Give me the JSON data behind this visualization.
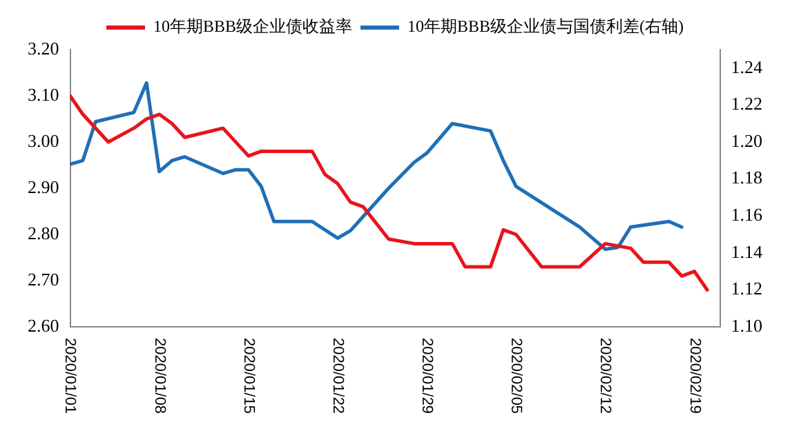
{
  "chart_data": {
    "type": "line",
    "legend": "top",
    "grid": false,
    "marker": "none",
    "line_style": "solid",
    "xlim": [
      "2020-01-01",
      "2020-02-21"
    ],
    "xticks": [
      {
        "value": "2020-01-01",
        "label": "2020/01/01"
      },
      {
        "value": "2020-01-08",
        "label": "2020/01/08"
      },
      {
        "value": "2020-01-15",
        "label": "2020/01/15"
      },
      {
        "value": "2020-01-22",
        "label": "2020/01/22"
      },
      {
        "value": "2020-01-29",
        "label": "2020/01/29"
      },
      {
        "value": "2020-02-05",
        "label": "2020/02/05"
      },
      {
        "value": "2020-02-12",
        "label": "2020/02/12"
      },
      {
        "value": "2020-02-19",
        "label": "2020/02/19"
      }
    ],
    "ylim": [
      2.6,
      3.2
    ],
    "yticks": [
      {
        "value": 2.6,
        "label": "2.60"
      },
      {
        "value": 2.7,
        "label": "2.70"
      },
      {
        "value": 2.8,
        "label": "2.80"
      },
      {
        "value": 2.9,
        "label": "2.90"
      },
      {
        "value": 3.0,
        "label": "3.00"
      },
      {
        "value": 3.1,
        "label": "3.10"
      },
      {
        "value": 3.2,
        "label": "3.20"
      }
    ],
    "y2lim": [
      1.1,
      1.25
    ],
    "y2ticks": [
      {
        "value": 1.1,
        "label": "1.10"
      },
      {
        "value": 1.12,
        "label": "1.12"
      },
      {
        "value": 1.14,
        "label": "1.14"
      },
      {
        "value": 1.16,
        "label": "1.16"
      },
      {
        "value": 1.18,
        "label": "1.18"
      },
      {
        "value": 1.2,
        "label": "1.20"
      },
      {
        "value": 1.22,
        "label": "1.22"
      },
      {
        "value": 1.24,
        "label": "1.24"
      }
    ],
    "series": [
      {
        "name": "10年期BBB级企业债收益率",
        "color": "#e8141c",
        "x": [
          "2020-01-01",
          "2020-01-02",
          "2020-01-04",
          "2020-01-06",
          "2020-01-07",
          "2020-01-08",
          "2020-01-09",
          "2020-01-10",
          "2020-01-13",
          "2020-01-15",
          "2020-01-16",
          "2020-01-20",
          "2020-01-21",
          "2020-01-22",
          "2020-01-23",
          "2020-01-24",
          "2020-01-26",
          "2020-01-28",
          "2020-01-31",
          "2020-02-01",
          "2020-02-03",
          "2020-02-04",
          "2020-02-05",
          "2020-02-07",
          "2020-02-10",
          "2020-02-12",
          "2020-02-14",
          "2020-02-15",
          "2020-02-17",
          "2020-02-18",
          "2020-02-19",
          "2020-02-20"
        ],
        "values": [
          3.1,
          3.06,
          3.0,
          3.03,
          3.05,
          3.06,
          3.04,
          3.01,
          3.03,
          2.97,
          2.98,
          2.98,
          2.93,
          2.91,
          2.87,
          2.86,
          2.79,
          2.78,
          2.78,
          2.73,
          2.73,
          2.81,
          2.8,
          2.73,
          2.73,
          2.78,
          2.77,
          2.74,
          2.74,
          2.71,
          2.72,
          2.68
        ]
      },
      {
        "name": "10年期BBB级企业债与国债利差(右轴)",
        "color": "#1f6fb5",
        "axis": "y2",
        "x": [
          "2020-01-01",
          "2020-01-02",
          "2020-01-03",
          "2020-01-06",
          "2020-01-07",
          "2020-01-08",
          "2020-01-09",
          "2020-01-10",
          "2020-01-13",
          "2020-01-14",
          "2020-01-15",
          "2020-01-16",
          "2020-01-17",
          "2020-01-20",
          "2020-01-22",
          "2020-01-23",
          "2020-01-26",
          "2020-01-28",
          "2020-01-29",
          "2020-01-31",
          "2020-02-03",
          "2020-02-04",
          "2020-02-05",
          "2020-02-10",
          "2020-02-12",
          "2020-02-13",
          "2020-02-14",
          "2020-02-17",
          "2020-02-18"
        ],
        "values": [
          1.188,
          1.19,
          1.211,
          1.216,
          1.232,
          1.184,
          1.19,
          1.192,
          1.183,
          1.185,
          1.185,
          1.176,
          1.157,
          1.157,
          1.148,
          1.152,
          1.175,
          1.189,
          1.194,
          1.21,
          1.206,
          1.19,
          1.176,
          1.154,
          1.142,
          1.143,
          1.154,
          1.157,
          1.154
        ]
      }
    ]
  }
}
